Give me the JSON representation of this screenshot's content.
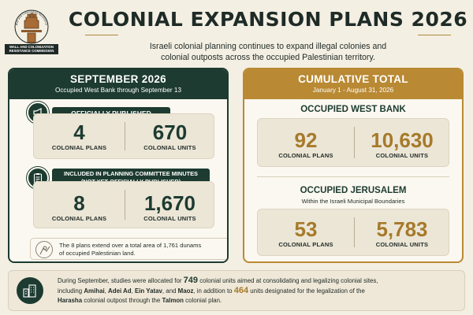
{
  "logo": {
    "arc_text": "Wall and Colonization Resistance Commission",
    "line1": "WALL AND COLONIZATION",
    "line2": "RESISTANCE COMMISSION"
  },
  "header": {
    "title": "COLONIAL EXPANSION PLANS 2026",
    "subtitle_line1": "Israeli colonial planning continues to expand illegal colonies and",
    "subtitle_line2": "colonial outposts across the occupied Palestinian territory."
  },
  "left_panel": {
    "title": "SEPTEMBER 2026",
    "subtitle": "Occupied West Bank through September 13",
    "published": {
      "label": "OFFICIALLY PUBLISHED",
      "plans_value": "4",
      "plans_label": "COLONIAL PLANS",
      "units_value": "670",
      "units_label": "COLONIAL UNITS"
    },
    "minutes": {
      "label_line1": "INCLUDED IN PLANNING COMMITTEE MINUTES",
      "label_line2": "(NOT YET OFFICIALLY PUBLISHED)",
      "plans_value": "8",
      "plans_label": "COLONIAL PLANS",
      "units_value": "1,670",
      "units_label": "COLONIAL UNITS"
    },
    "note_line1": "The 8 plans extend over a total area of 1,761 dunams",
    "note_line2": "of occupied Palestinian land."
  },
  "right_panel": {
    "title": "CUMULATIVE TOTAL",
    "subtitle": "January 1 - August 31, 2026",
    "west_bank": {
      "title": "OCCUPIED WEST BANK",
      "plans_value": "92",
      "plans_label": "COLONIAL PLANS",
      "units_value": "10,630",
      "units_label": "COLONIAL UNITS"
    },
    "jerusalem": {
      "title": "OCCUPIED JERUSALEM",
      "subtitle": "Within the Israeli Municipal Boundaries",
      "plans_value": "53",
      "plans_label": "COLONIAL PLANS",
      "units_value": "5,783",
      "units_label": "COLONIAL UNITS"
    }
  },
  "footer": {
    "t1": "During September, studies were allocated for ",
    "n1": "749",
    "t2": " colonial units aimed at consolidating and legalizing colonial sites,",
    "t3": "including ",
    "p1": "Amihai",
    "c1": ", ",
    "p2": "Adei Ad",
    "c2": ", ",
    "p3": "Ein Yatav",
    "c3": ",  and  ",
    "p4": "Maoz",
    "t4": ", in addition to ",
    "n2": "464",
    "t5": " units designated for the legalization of the",
    "p5": "Harasha",
    "t6": " colonial outpost through the ",
    "p6": "Talmon",
    "t7": " colonial plan."
  },
  "colors": {
    "dark_green": "#1d3b30",
    "gold": "#b98933",
    "gold_number": "#a67a2a",
    "background": "#f4efe3"
  },
  "icons": [
    "fist-logo-icon",
    "megaphone-icon",
    "clipboard-icon",
    "map-pin-icon",
    "buildings-icon"
  ]
}
